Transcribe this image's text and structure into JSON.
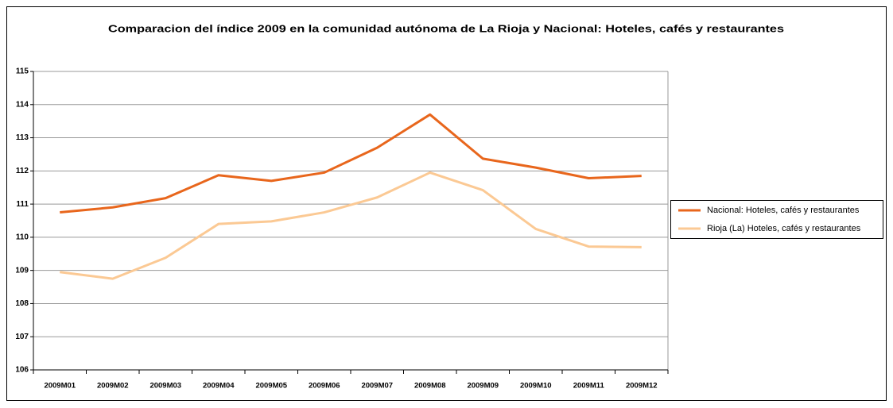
{
  "chart_data": {
    "type": "line",
    "title": "Comparacion del índice 2009 en la comunidad autónoma de La Rioja y Nacional: Hoteles, cafés y restaurantes",
    "categories": [
      "2009M01",
      "2009M02",
      "2009M03",
      "2009M04",
      "2009M05",
      "2009M06",
      "2009M07",
      "2009M08",
      "2009M09",
      "2009M10",
      "2009M11",
      "2009M12"
    ],
    "series": [
      {
        "name": "Nacional: Hoteles, cafés y restaurantes",
        "color": "#e8661c",
        "values": [
          110.75,
          110.9,
          111.18,
          111.87,
          111.7,
          111.95,
          112.7,
          113.7,
          112.37,
          112.1,
          111.78,
          111.85
        ]
      },
      {
        "name": "Rioja (La) Hoteles, cafés y restaurantes",
        "color": "#fbc994",
        "values": [
          108.95,
          108.75,
          109.38,
          110.4,
          110.48,
          110.75,
          111.2,
          111.95,
          111.42,
          110.25,
          109.72,
          109.7
        ]
      }
    ],
    "ylim": [
      106,
      115
    ],
    "yticks": [
      106,
      107,
      108,
      109,
      110,
      111,
      112,
      113,
      114,
      115
    ],
    "grid": true,
    "legend": "right"
  }
}
